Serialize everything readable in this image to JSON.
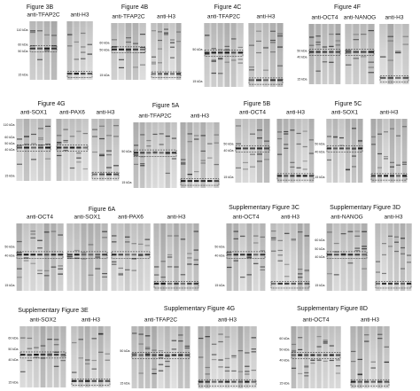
{
  "panels": [
    {
      "title": "Figure 3B",
      "antibodies": [
        "anti-TFAP2C",
        "anti-H3"
      ],
      "markers": [
        "110 kDa",
        "60 kDa",
        "50 kDa",
        "15 kDa"
      ]
    },
    {
      "title": "Figure 4B",
      "antibodies": [
        "anti-TFAP2C",
        "anti-H3"
      ],
      "markers": [
        "60 kDa",
        "50 kDa",
        "15 kDa"
      ]
    },
    {
      "title": "Figure 4C",
      "antibodies": [
        "anti-TFAP2C",
        "anti-H3"
      ],
      "markers": [
        "50 kDa",
        "15 kDa"
      ]
    },
    {
      "title": "Figure 4F",
      "antibodies": [
        "anti-OCT4",
        "anti-NANOG",
        "anti-H3"
      ],
      "markers": [
        "50 kDa",
        "40 kDa",
        "15 kDa"
      ]
    },
    {
      "title": "Figure 4G",
      "antibodies": [
        "anti-SOX1",
        "anti-PAX6",
        "anti-H3"
      ],
      "markers": [
        "110 kDa",
        "60 kDa",
        "50 kDa",
        "40 kDa",
        "15 kDa"
      ]
    },
    {
      "title": "Figure 5A",
      "antibodies": [
        "anti-TFAP2C",
        "anti-H3"
      ],
      "markers": [
        "50 kDa",
        "15 kDa"
      ]
    },
    {
      "title": "Figure 5B",
      "antibodies": [
        "anti-OCT4",
        "anti-H3"
      ],
      "markers": [
        "50 kDa",
        "40 kDa",
        "15 kDa"
      ]
    },
    {
      "title": "Figure 5C",
      "antibodies": [
        "anti-SOX1",
        "anti-H3"
      ],
      "markers": [
        "50 kDa",
        "40 kDa",
        "15 kDa"
      ]
    },
    {
      "title": "Figure 6A",
      "antibodies": [
        "anti-OCT4",
        "anti-SOX1",
        "anti-PAX6",
        "anti-H3"
      ],
      "markers": [
        "50 kDa",
        "40 kDa",
        "15 kDa"
      ]
    },
    {
      "title": "Supplementary Figure 3C",
      "antibodies": [
        "anti-OCT4",
        "anti-H3"
      ],
      "markers": [
        "50 kDa",
        "40 kDa",
        "15 kDa"
      ]
    },
    {
      "title": "Supplementary Figure 3D",
      "antibodies": [
        "anti-NANOG",
        "anti-H3"
      ],
      "markers": [
        "60 kDa",
        "50 kDa",
        "40 kDa",
        "15 kDa"
      ]
    },
    {
      "title": "Supplementary Figure 3E",
      "antibodies": [
        "anti-SOX2",
        "anti-H3"
      ],
      "markers": [
        "60 kDa",
        "50 kDa",
        "40 kDa",
        "15 kDa"
      ]
    },
    {
      "title": "Supplementary Figure 4G",
      "antibodies": [
        "anti-TFAP2C",
        "anti-H3"
      ],
      "markers": [
        "50 kDa",
        "15 kDa"
      ]
    },
    {
      "title": "Supplementary Figure 8D",
      "antibodies": [
        "anti-OCT4",
        "anti-H3"
      ],
      "markers": [
        "60 kDa",
        "50 kDa",
        "40 kDa",
        "15 kDa"
      ]
    }
  ]
}
